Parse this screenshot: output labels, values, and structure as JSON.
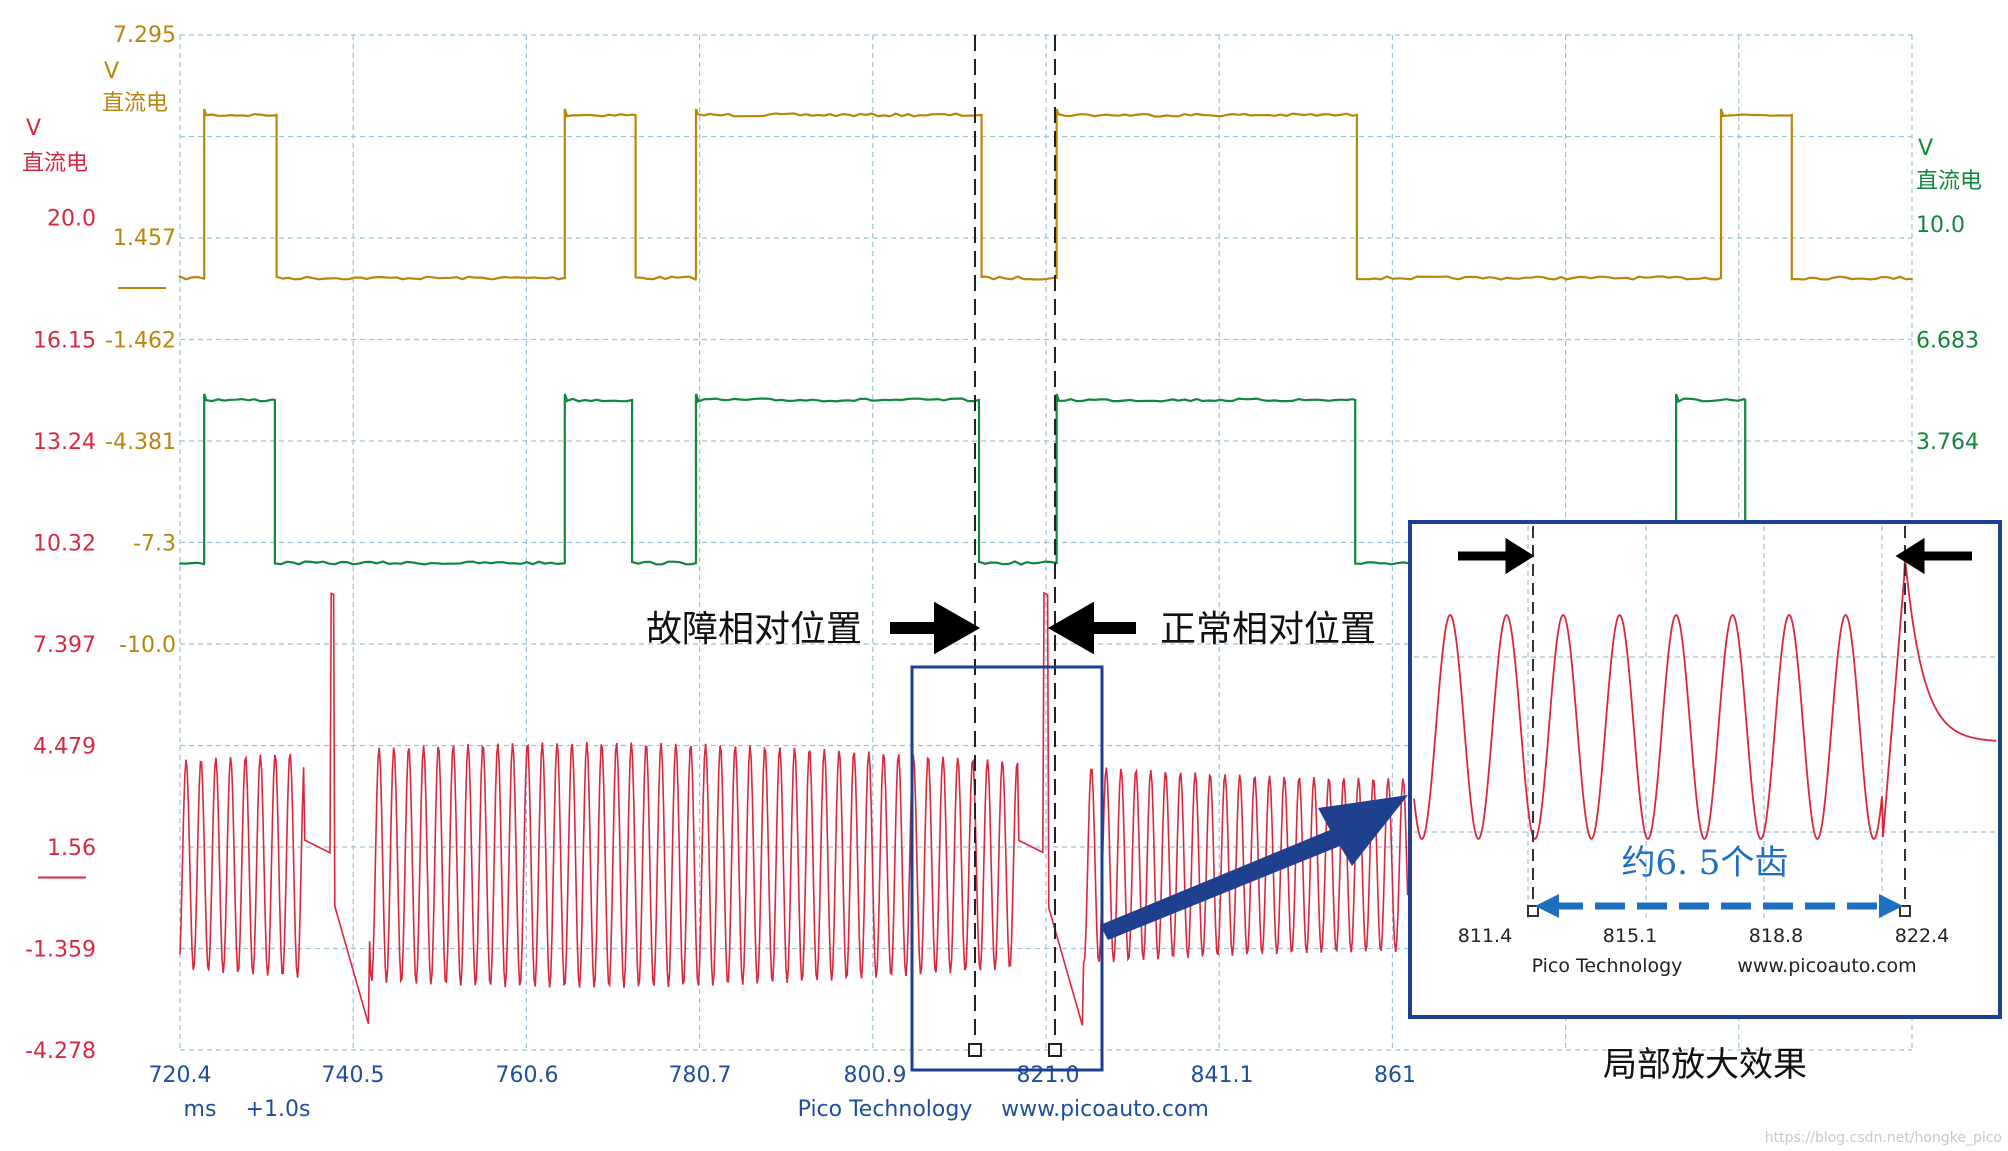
{
  "colors": {
    "trace_gold": "#B8860B",
    "trace_green": "#10873A",
    "trace_red": "#D9283E",
    "axis_blue": "#1F4E9A",
    "grid": "#9BC3D9",
    "frame": "#1F3F8F"
  },
  "chart_data": [
    {
      "type": "line",
      "title": "",
      "x_axis": {
        "ticks": [
          "720.4",
          "740.5",
          "760.6",
          "780.7",
          "800.9",
          "821.0",
          "841.1",
          "861"
        ],
        "unit": "ms",
        "offset_label": "+1.0s"
      },
      "left_axis_red": {
        "unit": "V",
        "coupling": "直流电",
        "ticks": [
          "20.0",
          "16.15",
          "13.24",
          "10.32",
          "7.397",
          "4.479",
          "1.56",
          "-1.359",
          "-4.278"
        ]
      },
      "left_axis_gold": {
        "unit": "V",
        "coupling": "直流电",
        "ticks": [
          "7.295",
          "1.457",
          "-1.462",
          "-4.381",
          "-7.3",
          "-10.0"
        ]
      },
      "right_axis_green": {
        "unit": "V",
        "coupling": "直流电",
        "ticks": [
          "10.0",
          "6.683",
          "3.764"
        ]
      },
      "series": [
        {
          "color": "gold",
          "kind": "square-wave",
          "high_ms": [
            [
              723.2,
              731.6
            ],
            [
              765.0,
              773.2
            ],
            [
              780.2,
              813.3
            ],
            [
              822.0,
              856.8
            ],
            [
              899.0,
              907.2
            ]
          ]
        },
        {
          "color": "green",
          "kind": "square-wave",
          "high_ms": [
            [
              723.2,
              731.4
            ],
            [
              765.0,
              772.8
            ],
            [
              780.2,
              813.0
            ],
            [
              822.0,
              856.6
            ],
            [
              893.8,
              901.8
            ]
          ]
        },
        {
          "color": "red",
          "kind": "crank-sensor",
          "teeth_period_ms": 1.72,
          "gap_at_ms": [
            738.3,
            821.0
          ]
        }
      ],
      "annotations": {
        "fault_label": "故障相对位置",
        "normal_label": "正常相对位置",
        "cursor_ms": [
          812.5,
          821.0
        ],
        "zoom_caption": "局部放大效果"
      },
      "footer": {
        "brand": "Pico Technology",
        "url": "www.picoauto.com"
      }
    },
    {
      "type": "line",
      "inset": true,
      "x_ticks": [
        "811.4",
        "815.1",
        "818.8",
        "822.4"
      ],
      "measurement_label": "约6. 5个齿",
      "footer": {
        "brand": "Pico Technology",
        "url": "www.picoauto.com"
      }
    }
  ],
  "watermark": "https://blog.csdn.net/hongke_pico"
}
